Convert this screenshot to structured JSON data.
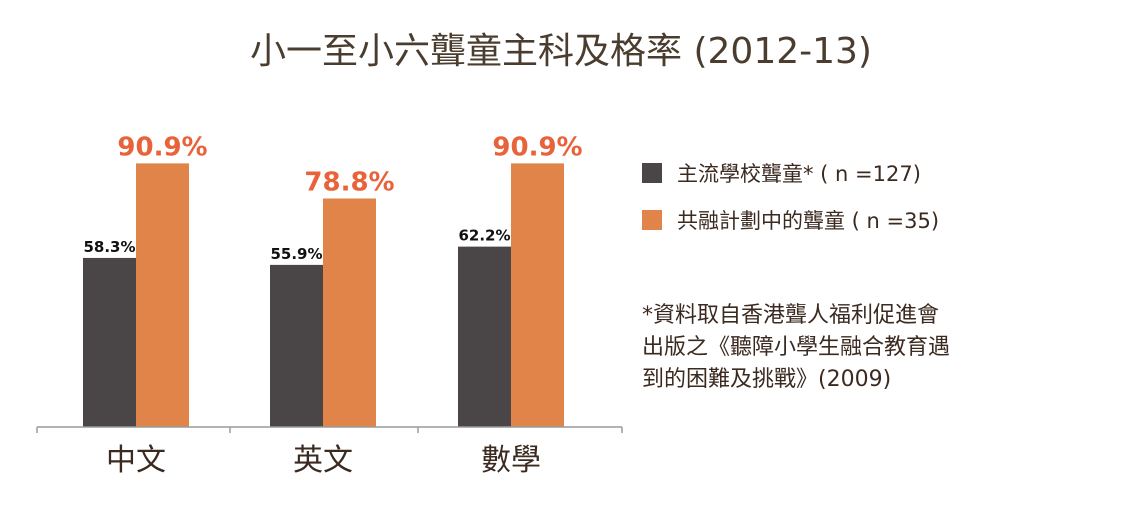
{
  "chart_data": {
    "type": "bar",
    "title": "小一至小六聾童主科及格率 (2012-13)",
    "categories": [
      "中文",
      "英文",
      "數學"
    ],
    "series": [
      {
        "name": "主流學校聾童* ( n =127)",
        "values": [
          58.3,
          55.9,
          62.2
        ],
        "labels": [
          "58.3%",
          "55.9%",
          "62.2%"
        ],
        "color": "#4a4546"
      },
      {
        "name": "共融計劃中的聾童 ( n =35)",
        "values": [
          90.9,
          78.8,
          90.9
        ],
        "labels": [
          "90.9%",
          "78.8%",
          "90.9%"
        ],
        "color": "#e0844a"
      }
    ],
    "ylim": [
      0,
      100
    ],
    "grid": false,
    "legend_position": "right"
  },
  "colors": {
    "label_highlight": "#e8623a",
    "text": "#3b2a20"
  },
  "footnote": [
    "*資料取自香港聾人福利促進會",
    "出版之《聽障小學生融合教育遇",
    "到的困難及挑戰》(2009)"
  ]
}
